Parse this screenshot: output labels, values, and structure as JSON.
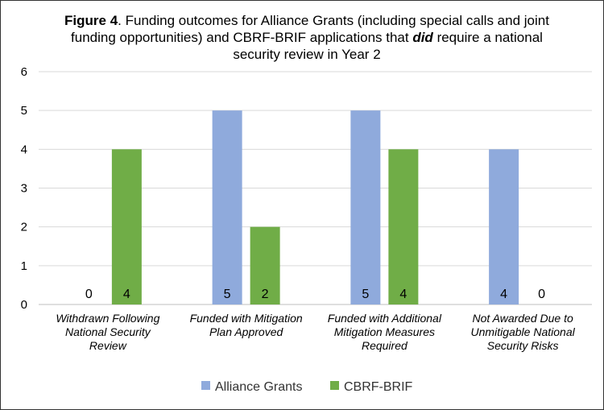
{
  "chart_data": {
    "type": "bar",
    "title": {
      "bold_prefix": "Figure 4",
      "part1": ". Funding outcomes for Alliance Grants (including special calls and joint funding opportunities) and CBRF-BRIF applications that ",
      "emphasis": "did",
      "part2": " require a national security review in Year 2"
    },
    "categories": [
      [
        "Withdrawn Following",
        "National Security",
        "Review"
      ],
      [
        "Funded with Mitigation",
        "Plan Approved"
      ],
      [
        "Funded with Additional",
        "Mitigation Measures",
        "Required"
      ],
      [
        "Not Awarded Due to",
        "Unmitigable National",
        "Security Risks"
      ]
    ],
    "series": [
      {
        "name": "Alliance Grants",
        "values": [
          0,
          5,
          5,
          4
        ],
        "color": "#8faadc"
      },
      {
        "name": "CBRF-BRIF",
        "values": [
          4,
          2,
          4,
          0
        ],
        "color": "#70ad47"
      }
    ],
    "ylim": [
      0,
      6
    ],
    "yticks": [
      0,
      1,
      2,
      3,
      4,
      5,
      6
    ],
    "grid": true,
    "data_labels": "inside-base",
    "legend": "bottom"
  }
}
